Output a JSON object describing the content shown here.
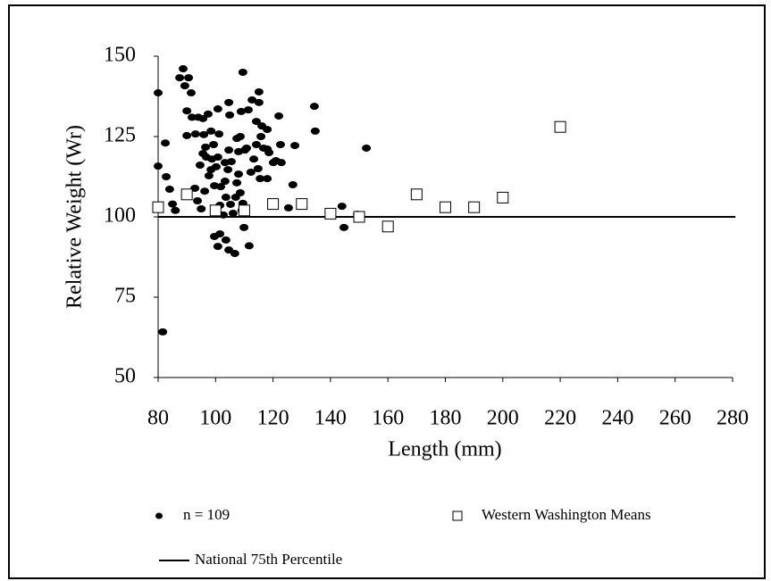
{
  "chart_data": {
    "type": "scatter",
    "xlabel": "Length (mm)",
    "ylabel": "Relative Weight (Wr)",
    "xlim": [
      80,
      280
    ],
    "xticks": [
      80,
      100,
      120,
      140,
      160,
      180,
      200,
      220,
      240,
      260,
      280
    ],
    "ylim": [
      50,
      150
    ],
    "yticks": [
      50,
      75,
      100,
      125,
      150
    ],
    "series": [
      {
        "name": "n = 109",
        "color": "#000000",
        "marker": "ellipse",
        "x": [
          80,
          80,
          81.6,
          82.5,
          82.8,
          84,
          85,
          86,
          87.5,
          88.7,
          89.3,
          90.6,
          90,
          90,
          91.5,
          91.8,
          93,
          94,
          92.8,
          93.7,
          94.6,
          95,
          96.2,
          95.6,
          95.6,
          95.9,
          96.5,
          96.8,
          97.4,
          97.7,
          98.4,
          98.4,
          98.7,
          99.3,
          99.6,
          100.2,
          100.8,
          101.2,
          99.6,
          100.8,
          101.5,
          101.5,
          102.7,
          103.3,
          100.8,
          103.3,
          103.6,
          104.6,
          103.6,
          104.3,
          104.6,
          104.6,
          104.9,
          105.2,
          105.5,
          106.1,
          106.7,
          107,
          107.4,
          107.4,
          108,
          108,
          108.6,
          108.9,
          108.6,
          109.2,
          109.5,
          109.5,
          109.9,
          110.2,
          110.8,
          111.4,
          111.7,
          112.3,
          112.7,
          113.3,
          114.2,
          114.2,
          114.8,
          115.1,
          115.1,
          115.8,
          116.1,
          116.7,
          115.5,
          118,
          118,
          118,
          118.6,
          120.1,
          121,
          122,
          122.6,
          122.9,
          125.4,
          126.9,
          127.6,
          134.4,
          134.7,
          144,
          144.7,
          149.4,
          152.5,
          101.8
        ],
        "values": [
          138.6,
          115.8,
          64.2,
          123,
          112.5,
          108.6,
          104,
          102,
          143.3,
          146.1,
          140.8,
          143.3,
          133,
          125.3,
          138.6,
          131,
          125.8,
          131,
          108.9,
          105,
          116.1,
          102.5,
          108,
          119.7,
          130.6,
          125.6,
          121.7,
          118.6,
          132,
          112.8,
          114.7,
          126.7,
          118,
          122.5,
          109.7,
          115.6,
          118.6,
          125.8,
          93.9,
          90.8,
          94.7,
          103.6,
          100.6,
          111.1,
          133.6,
          116.9,
          92.8,
          89.7,
          106.1,
          114.7,
          120.8,
          135.6,
          131.7,
          103.9,
          117.2,
          101.1,
          88.6,
          106.1,
          110.6,
          124.4,
          113.3,
          120.3,
          107.5,
          132.8,
          125,
          102,
          145,
          104.2,
          96.7,
          120.8,
          121.4,
          133.3,
          91,
          113.9,
          136.4,
          118,
          129.7,
          122.5,
          115,
          138.9,
          135.6,
          125,
          128.3,
          121.4,
          111.9,
          111.9,
          121.1,
          127.2,
          120,
          116.9,
          117.5,
          131.4,
          122.5,
          116.9,
          102.8,
          110,
          122.2,
          134.4,
          126.7,
          103.3,
          96.7,
          100.8,
          121.4,
          109.4
        ]
      },
      {
        "name": "Western Washington Means",
        "color": "#ffffff",
        "marker": "square",
        "x": [
          80,
          90,
          100,
          110,
          120,
          130,
          140,
          150,
          160,
          170,
          180,
          190,
          200,
          220
        ],
        "values": [
          103,
          107,
          102,
          102,
          104,
          104,
          101,
          100,
          97,
          107,
          103,
          103,
          106,
          128
        ]
      },
      {
        "name": "National 75th Percentile",
        "color": "#000000",
        "marker": "line",
        "x": [
          80,
          281
        ],
        "values": [
          100,
          100
        ]
      }
    ]
  }
}
